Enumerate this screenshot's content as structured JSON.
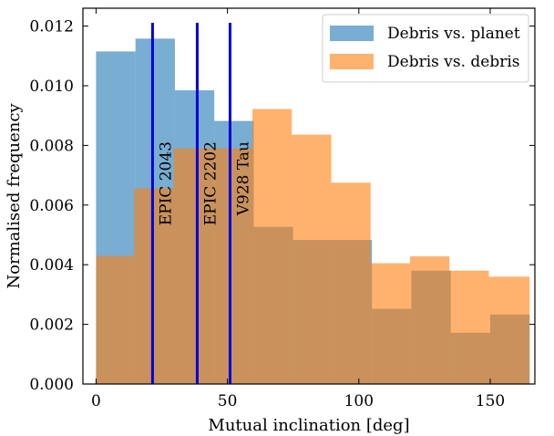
{
  "chart_data": {
    "type": "bar",
    "xlabel": "Mutual inclination [deg]",
    "ylabel": "Normalised frequency",
    "xlim": [
      -5,
      167
    ],
    "ylim": [
      0,
      0.0126
    ],
    "xticks": [
      0,
      50,
      100,
      150
    ],
    "yticks": [
      0.0,
      0.002,
      0.004,
      0.006,
      0.008,
      0.01,
      0.012
    ],
    "ytick_labels": [
      "0.000",
      "0.002",
      "0.004",
      "0.006",
      "0.008",
      "0.010",
      "0.012"
    ],
    "legend_position": "top-right",
    "series": [
      {
        "name": "Debris vs. planet",
        "color": "#1f77b4",
        "bins": [
          {
            "x0": 0,
            "x1": 15,
            "value": 0.01115
          },
          {
            "x0": 15,
            "x1": 30,
            "value": 0.01158
          },
          {
            "x0": 30,
            "x1": 45,
            "value": 0.00985
          },
          {
            "x0": 45,
            "x1": 60,
            "value": 0.00882
          },
          {
            "x0": 60,
            "x1": 75,
            "value": 0.00527
          },
          {
            "x0": 75,
            "x1": 90,
            "value": 0.00483
          },
          {
            "x0": 90,
            "x1": 105,
            "value": 0.00483
          },
          {
            "x0": 105,
            "x1": 120,
            "value": 0.00252
          },
          {
            "x0": 120,
            "x1": 135,
            "value": 0.0038
          },
          {
            "x0": 135,
            "x1": 150,
            "value": 0.00172
          },
          {
            "x0": 150,
            "x1": 165,
            "value": 0.00233
          }
        ]
      },
      {
        "name": "Debris vs. debris",
        "color": "#ff7f0e",
        "bins": [
          {
            "x0": 0,
            "x1": 14.5,
            "value": 0.0043
          },
          {
            "x0": 14.5,
            "x1": 29.5,
            "value": 0.00656
          },
          {
            "x0": 29.5,
            "x1": 44.5,
            "value": 0.0079
          },
          {
            "x0": 44.5,
            "x1": 59.5,
            "value": 0.0079
          },
          {
            "x0": 59.5,
            "x1": 74.5,
            "value": 0.00922
          },
          {
            "x0": 74.5,
            "x1": 89.5,
            "value": 0.00836
          },
          {
            "x0": 89.5,
            "x1": 104.5,
            "value": 0.00675
          },
          {
            "x0": 104.5,
            "x1": 119.5,
            "value": 0.00405
          },
          {
            "x0": 119.5,
            "x1": 134.5,
            "value": 0.00428
          },
          {
            "x0": 134.5,
            "x1": 149.5,
            "value": 0.0038
          },
          {
            "x0": 149.5,
            "x1": 165,
            "value": 0.0036
          }
        ]
      }
    ],
    "vlines": [
      {
        "x": 21.5,
        "label": "EPIC 2043",
        "color": "#0000dd"
      },
      {
        "x": 38.5,
        "label": "EPIC 2202",
        "color": "#0000dd"
      },
      {
        "x": 51.0,
        "label": "V928 Tau",
        "color": "#0000dd"
      }
    ]
  }
}
